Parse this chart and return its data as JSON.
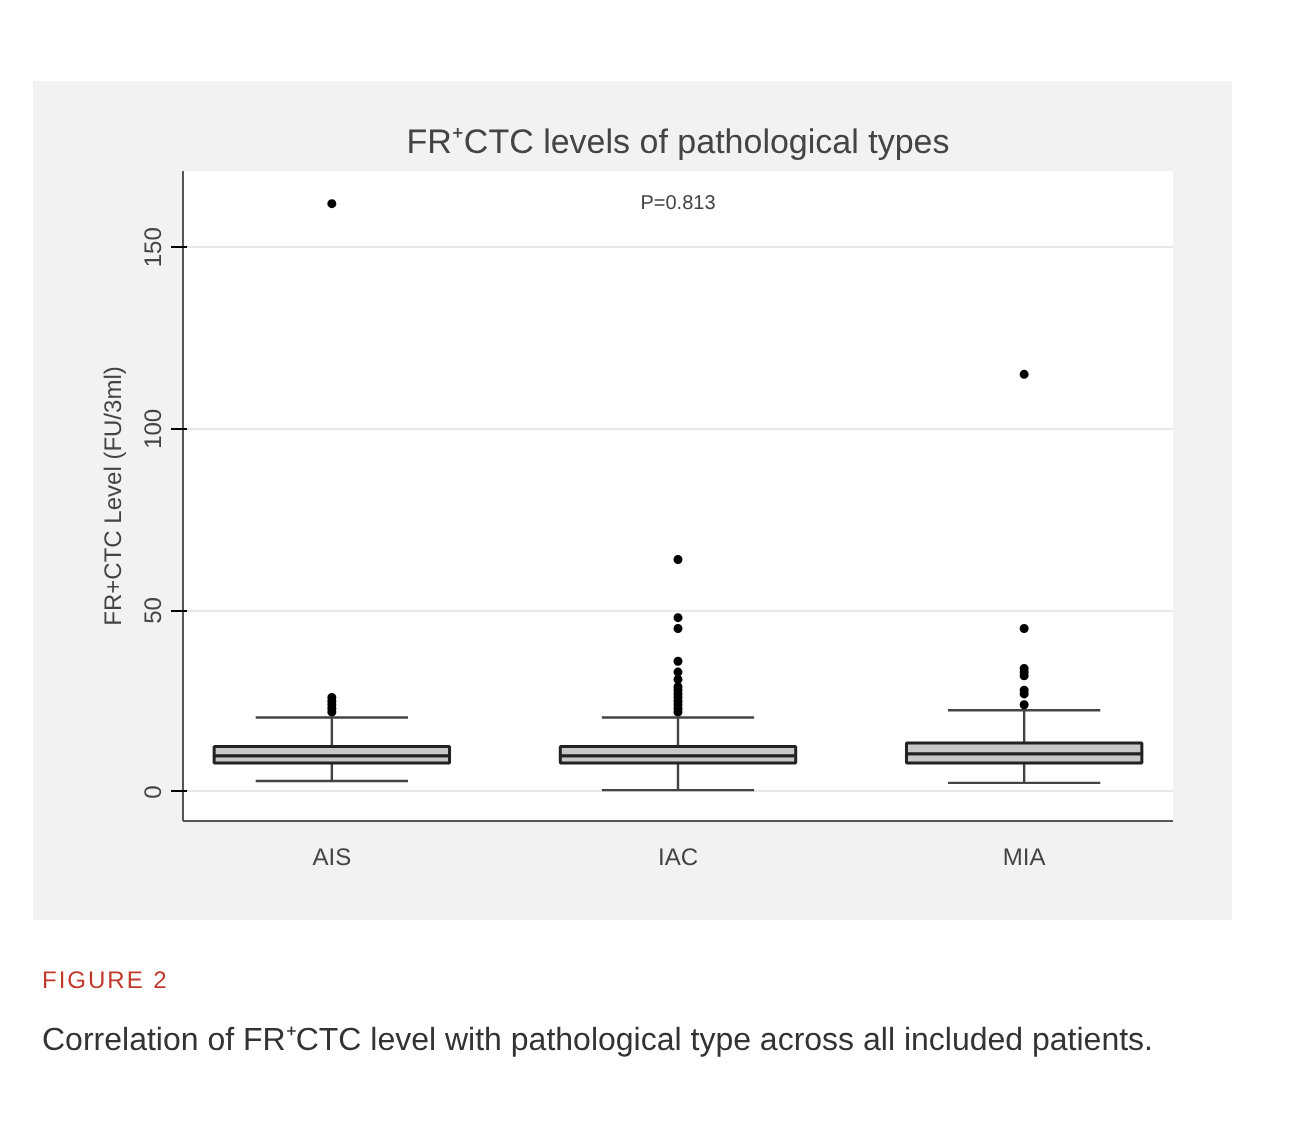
{
  "chart_data": {
    "type": "box",
    "title": "FR⁺CTC levels of pathological types",
    "ylabel": "FR+CTC Level (FU/3ml)",
    "categories": [
      "AIS",
      "IAC",
      "MIA"
    ],
    "boxes": [
      {
        "low": 3,
        "q1": 8,
        "median": 10,
        "q3": 12.5,
        "high": 20.5,
        "outliers": [
          22,
          23,
          24,
          25,
          26,
          162
        ]
      },
      {
        "low": 0.5,
        "q1": 8,
        "median": 10,
        "q3": 12.5,
        "high": 20.5,
        "outliers": [
          22,
          23,
          24,
          25,
          26,
          27,
          28,
          29,
          31,
          33,
          36,
          45,
          48,
          64
        ]
      },
      {
        "low": 2.5,
        "q1": 8,
        "median": 10.5,
        "q3": 13.5,
        "high": 22.5,
        "outliers": [
          24,
          27,
          28,
          32,
          33,
          34,
          45,
          115
        ]
      }
    ],
    "color": "#c8c8c8",
    "ylim": [
      -8,
      171
    ],
    "yticks": [
      0,
      50,
      100,
      150
    ],
    "grid": "y",
    "annotations": [
      "P=0.813",
      "FIGURE 2",
      "Correlation of FR⁺CTC level with pathological type across all included patients."
    ]
  }
}
